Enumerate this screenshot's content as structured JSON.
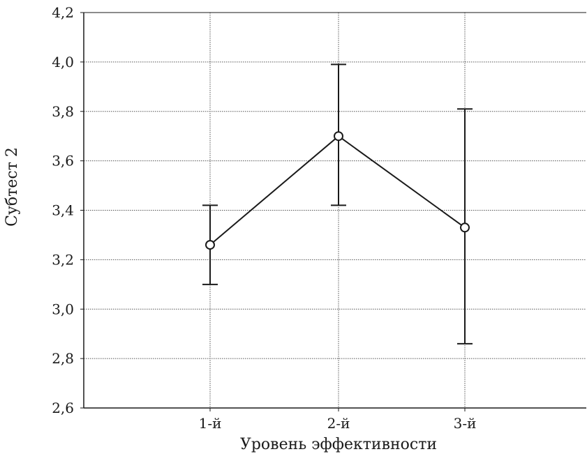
{
  "chart_data": {
    "type": "line",
    "title": "",
    "xlabel": "Уровень эффективности",
    "ylabel": "Субтест 2",
    "categories": [
      "1-й",
      "2-й",
      "3-й"
    ],
    "ylim": [
      2.6,
      4.2
    ],
    "yticks": [
      "2,6",
      "2,8",
      "3,0",
      "3,2",
      "3,4",
      "3,6",
      "3,8",
      "4,0",
      "4,2"
    ],
    "grid": true,
    "series": [
      {
        "values": [
          3.26,
          3.7,
          3.33
        ],
        "error_low": [
          3.1,
          3.42,
          2.86
        ],
        "error_high": [
          3.42,
          3.99,
          3.81
        ],
        "marker": "open-circle",
        "color": "#1a1a1a"
      }
    ]
  }
}
